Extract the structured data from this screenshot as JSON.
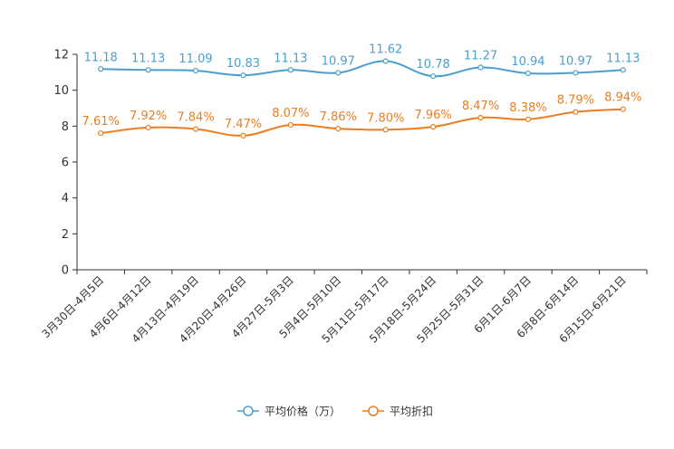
{
  "chart_data": {
    "type": "line",
    "title": "",
    "xlabel": "",
    "ylabel": "",
    "ylim": [
      0,
      12
    ],
    "yticks": [
      0,
      2,
      4,
      6,
      8,
      10,
      12
    ],
    "categories": [
      "3月30日-4月5日",
      "4月6日-4月12日",
      "4月13日-4月19日",
      "4月20日-4月26日",
      "4月27日-5月3日",
      "5月4日-5月10日",
      "5月11日-5月17日",
      "5月18日-5月24日",
      "5月25日-5月31日",
      "6月1日-6月7日",
      "6月8日-6月14日",
      "6月15日-6月21日"
    ],
    "series": [
      {
        "name": "平均价格（万）",
        "color": "#4a9fce",
        "values": [
          11.18,
          11.13,
          11.09,
          10.83,
          11.13,
          10.97,
          11.62,
          10.78,
          11.27,
          10.94,
          10.97,
          11.13
        ],
        "labels": [
          "11.18",
          "11.13",
          "11.09",
          "10.83",
          "11.13",
          "10.97",
          "11.62",
          "10.78",
          "11.27",
          "10.94",
          "10.97",
          "11.13"
        ]
      },
      {
        "name": "平均折扣",
        "color": "#ed7d1f",
        "values": [
          7.61,
          7.92,
          7.84,
          7.47,
          8.07,
          7.86,
          7.8,
          7.96,
          8.47,
          8.38,
          8.79,
          8.94
        ],
        "labels": [
          "7.61%",
          "7.92%",
          "7.84%",
          "7.47%",
          "8.07%",
          "7.86%",
          "7.80%",
          "7.96%",
          "8.47%",
          "8.38%",
          "8.79%",
          "8.94%"
        ]
      }
    ],
    "legend_position": "bottom-center"
  }
}
